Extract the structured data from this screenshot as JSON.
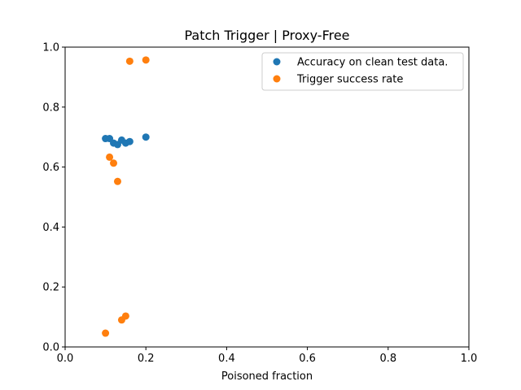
{
  "chart_data": {
    "type": "scatter",
    "title": "Patch Trigger | Proxy-Free",
    "xlabel": "Poisoned fraction",
    "ylabel": "",
    "xlim": [
      0,
      1
    ],
    "ylim": [
      0,
      1
    ],
    "xticks": [
      "0.0",
      "0.2",
      "0.4",
      "0.6",
      "0.8",
      "1.0"
    ],
    "yticks": [
      "0.0",
      "0.2",
      "0.4",
      "0.6",
      "0.8",
      "1.0"
    ],
    "grid": false,
    "legend_position": "top-right",
    "series": [
      {
        "name": "Accuracy on clean test data.",
        "color": "#1f77b4",
        "x": [
          0.1,
          0.11,
          0.12,
          0.13,
          0.14,
          0.15,
          0.16,
          0.2
        ],
        "y": [
          0.695,
          0.695,
          0.68,
          0.675,
          0.69,
          0.68,
          0.685,
          0.7
        ]
      },
      {
        "name": "Trigger success rate",
        "color": "#ff7f0e",
        "x": [
          0.1,
          0.11,
          0.12,
          0.13,
          0.14,
          0.15,
          0.16,
          0.2
        ],
        "y": [
          0.046,
          0.633,
          0.613,
          0.552,
          0.09,
          0.103,
          0.953,
          0.957
        ]
      }
    ]
  }
}
